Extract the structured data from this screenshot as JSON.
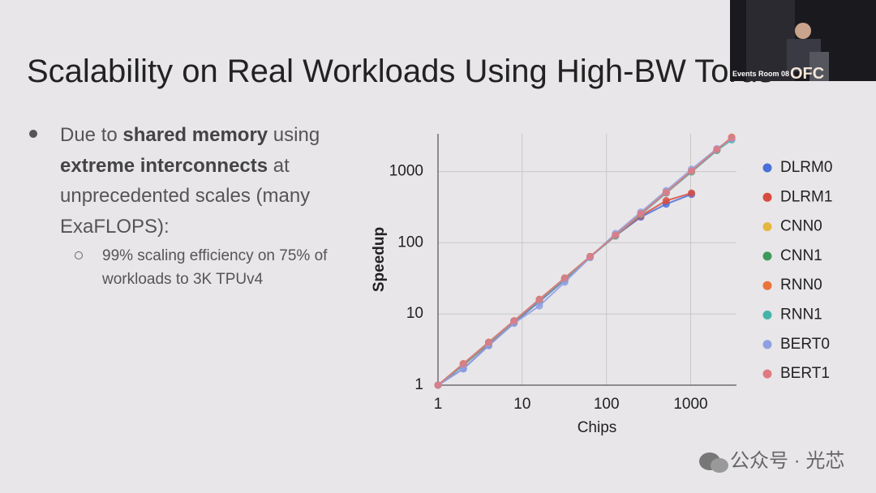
{
  "slide": {
    "title": "Scalability on Real Workloads Using High-BW Torus",
    "bullet": [
      "Due to ",
      "shared memory",
      " using ",
      "extreme interconnects",
      " at unprecedented scales (many ExaFLOPS):"
    ],
    "sub_bullet": "99% scaling efficiency on 75% of workloads to 3K TPUv4"
  },
  "video": {
    "room": "Events Room 08",
    "logo": "OFC"
  },
  "watermark": "公众号 · 光芯",
  "chart_data": {
    "type": "line",
    "x_label": "Chips",
    "y_label": "Speedup",
    "log_x": true,
    "log_y": true,
    "grid": true,
    "legend": "right",
    "xlim": [
      1,
      3500
    ],
    "ylim": [
      1,
      3400
    ],
    "xticks": [
      1,
      10,
      100,
      1000
    ],
    "yticks": [
      1,
      10,
      100,
      1000
    ],
    "x": [
      1,
      2,
      4,
      8,
      16,
      32,
      64,
      128,
      256,
      512,
      1024,
      2048,
      3072
    ],
    "series": [
      {
        "name": "DLRM0",
        "color": "#4a6fd8",
        "values": [
          1,
          1.7,
          3.6,
          7.5,
          15,
          30,
          64,
          125,
          230,
          350,
          480,
          null,
          null
        ]
      },
      {
        "name": "DLRM1",
        "color": "#d94b3f",
        "values": [
          1,
          1.9,
          3.8,
          7.7,
          15.5,
          31,
          64,
          125,
          240,
          390,
          500,
          null,
          null
        ]
      },
      {
        "name": "CNN0",
        "color": "#e6b73e",
        "values": [
          1,
          2,
          4,
          8,
          16,
          32,
          64,
          128,
          256,
          512,
          1000,
          2000,
          3000
        ]
      },
      {
        "name": "CNN1",
        "color": "#3f9a5a",
        "values": [
          1,
          2,
          4,
          8,
          16,
          32,
          64,
          128,
          256,
          512,
          1010,
          2020,
          3000
        ]
      },
      {
        "name": "RNN0",
        "color": "#e8743b",
        "values": [
          1,
          2,
          4,
          8,
          16,
          32,
          64,
          128,
          256,
          510,
          1000,
          2000,
          3050
        ]
      },
      {
        "name": "RNN1",
        "color": "#47b3a8",
        "values": [
          1,
          1.9,
          3.9,
          7.8,
          15.5,
          31,
          63,
          125,
          250,
          500,
          990,
          1980,
          2800
        ]
      },
      {
        "name": "BERT0",
        "color": "#8ea0e0",
        "values": [
          1,
          1.7,
          3.6,
          7.4,
          13,
          28,
          62,
          135,
          270,
          540,
          1080,
          2100,
          2900
        ]
      },
      {
        "name": "BERT1",
        "color": "#e07a82",
        "values": [
          1,
          2,
          4,
          8,
          16,
          32,
          64,
          128,
          256,
          510,
          1020,
          2050,
          3000
        ]
      }
    ]
  }
}
